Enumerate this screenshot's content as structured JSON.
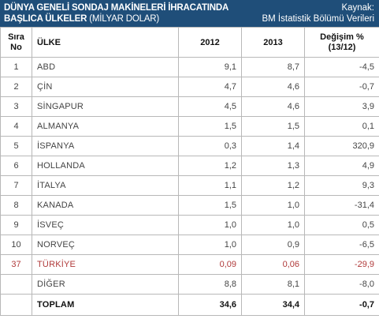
{
  "title": {
    "line1": "DÜNYA GENELİ SONDAJ MAKİNELERİ İHRACATINDA",
    "line2_main": "BAŞLICA ÜLKELER",
    "line2_unit": "(MİLYAR DOLAR)"
  },
  "source": {
    "line1": "Kaynak:",
    "line2": "BM İstatistik Bölümü Verileri"
  },
  "colors": {
    "header_bg": "#1f4e79",
    "highlight_text": "#b03a3a",
    "border": "#b8b8b8"
  },
  "table": {
    "headers": {
      "rank_line1": "Sıra",
      "rank_line2": "No",
      "country": "ÜLKE",
      "y2012": "2012",
      "y2013": "2013",
      "change_line1": "Değişim %",
      "change_line2": "(13/12)"
    },
    "rows": [
      {
        "rank": "1",
        "country": "ABD",
        "y2012": "9,1",
        "y2013": "8,7",
        "change": "-4,5"
      },
      {
        "rank": "2",
        "country": "ÇİN",
        "y2012": "4,7",
        "y2013": "4,6",
        "change": "-0,7"
      },
      {
        "rank": "3",
        "country": "SİNGAPUR",
        "y2012": "4,5",
        "y2013": "4,6",
        "change": "3,9"
      },
      {
        "rank": "4",
        "country": "ALMANYA",
        "y2012": "1,5",
        "y2013": "1,5",
        "change": "0,1"
      },
      {
        "rank": "5",
        "country": "İSPANYA",
        "y2012": "0,3",
        "y2013": "1,4",
        "change": "320,9"
      },
      {
        "rank": "6",
        "country": "HOLLANDA",
        "y2012": "1,2",
        "y2013": "1,3",
        "change": "4,9"
      },
      {
        "rank": "7",
        "country": "İTALYA",
        "y2012": "1,1",
        "y2013": "1,2",
        "change": "9,3"
      },
      {
        "rank": "8",
        "country": "KANADA",
        "y2012": "1,5",
        "y2013": "1,0",
        "change": "-31,4"
      },
      {
        "rank": "9",
        "country": "İSVEÇ",
        "y2012": "1,0",
        "y2013": "1,0",
        "change": "0,5"
      },
      {
        "rank": "10",
        "country": "NORVEÇ",
        "y2012": "1,0",
        "y2013": "0,9",
        "change": "-6,5"
      },
      {
        "rank": "37",
        "country": "TÜRKİYE",
        "y2012": "0,09",
        "y2013": "0,06",
        "change": "-29,9",
        "highlight": true
      },
      {
        "rank": "",
        "country": "DİĞER",
        "y2012": "8,8",
        "y2013": "8,1",
        "change": "-8,0"
      }
    ],
    "total": {
      "label": "TOPLAM",
      "y2012": "34,6",
      "y2013": "34,4",
      "change": "-0,7"
    }
  }
}
